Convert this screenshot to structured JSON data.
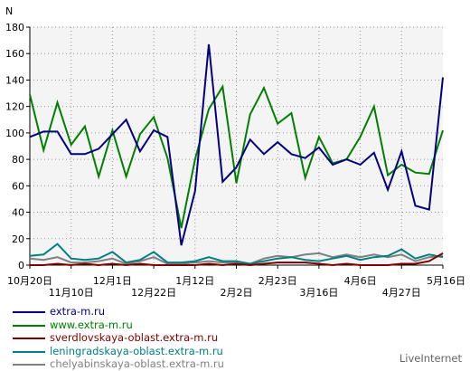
{
  "chart_data": {
    "type": "line",
    "ylabel": "N",
    "ylim": [
      0,
      180
    ],
    "yticks": [
      0,
      20,
      40,
      60,
      80,
      100,
      120,
      140,
      160,
      180
    ],
    "grid": true,
    "legend_position": "bottom-left",
    "watermark": "LiveInternet",
    "x_count": 30,
    "x_ticks": [
      {
        "index": 0,
        "label": "10月20日",
        "row": 1
      },
      {
        "index": 3,
        "label": "11月10日",
        "row": 2
      },
      {
        "index": 6,
        "label": "12月1日",
        "row": 1
      },
      {
        "index": 9,
        "label": "12月22日",
        "row": 2
      },
      {
        "index": 12,
        "label": "1月12日",
        "row": 1
      },
      {
        "index": 15,
        "label": "2月2日",
        "row": 2
      },
      {
        "index": 18,
        "label": "2月23日",
        "row": 1
      },
      {
        "index": 21,
        "label": "3月16日",
        "row": 2
      },
      {
        "index": 24,
        "label": "4月6日",
        "row": 1
      },
      {
        "index": 27,
        "label": "4月27日",
        "row": 2
      },
      {
        "index": 30,
        "label": "5月16日",
        "row": 1
      }
    ],
    "series": [
      {
        "name": "extra-m.ru",
        "color": "#000080",
        "values": [
          97,
          101,
          101,
          84,
          84,
          88,
          99,
          110,
          86,
          102,
          97,
          15,
          56,
          167,
          63,
          74,
          95,
          84,
          93,
          84,
          81,
          89,
          76,
          80,
          76,
          85,
          57,
          86,
          45,
          42,
          142
        ]
      },
      {
        "name": "www.extra-m.ru",
        "color": "#008000",
        "values": [
          129,
          87,
          123,
          91,
          105,
          67,
          102,
          67,
          99,
          112,
          81,
          28,
          80,
          118,
          135,
          62,
          114,
          134,
          107,
          115,
          66,
          97,
          77,
          80,
          97,
          120,
          68,
          76,
          70,
          69,
          102
        ]
      },
      {
        "name": "sverdlovskaya-oblast.extra-m.ru",
        "color": "#800000",
        "values": [
          0,
          0,
          1,
          0,
          1,
          0,
          1,
          0,
          1,
          0,
          0,
          0,
          0,
          1,
          0,
          1,
          0,
          1,
          2,
          2,
          2,
          1,
          0,
          1,
          0,
          0,
          0,
          1,
          1,
          3,
          9
        ]
      },
      {
        "name": "leningradskaya-oblast.extra-m.ru",
        "color": "#008080",
        "values": [
          7,
          8,
          16,
          5,
          4,
          5,
          10,
          2,
          4,
          10,
          2,
          2,
          3,
          6,
          3,
          3,
          1,
          3,
          5,
          6,
          4,
          3,
          5,
          7,
          4,
          6,
          7,
          12,
          5,
          8,
          6
        ]
      },
      {
        "name": "chelyabinskaya-oblast.extra-m.ru",
        "color": "#808080",
        "values": [
          5,
          4,
          6,
          2,
          2,
          3,
          5,
          1,
          3,
          6,
          1,
          1,
          2,
          3,
          2,
          2,
          1,
          5,
          7,
          6,
          8,
          9,
          6,
          8,
          6,
          8,
          6,
          8,
          3,
          6,
          7
        ]
      }
    ]
  }
}
